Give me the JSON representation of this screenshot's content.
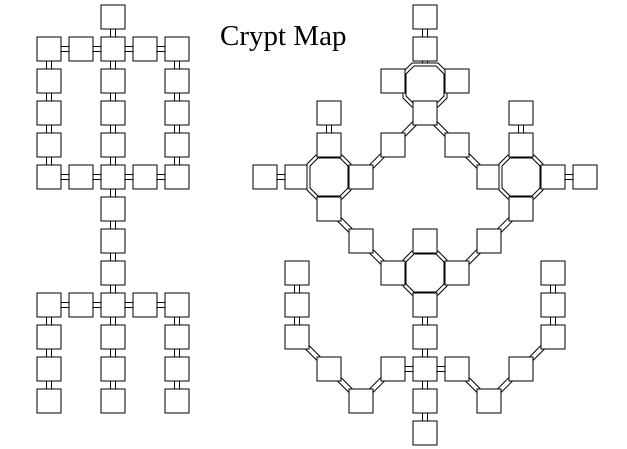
{
  "title": "Crypt Map",
  "colors": {
    "ink": "#000000",
    "background": "#ffffff"
  },
  "legend": []
}
